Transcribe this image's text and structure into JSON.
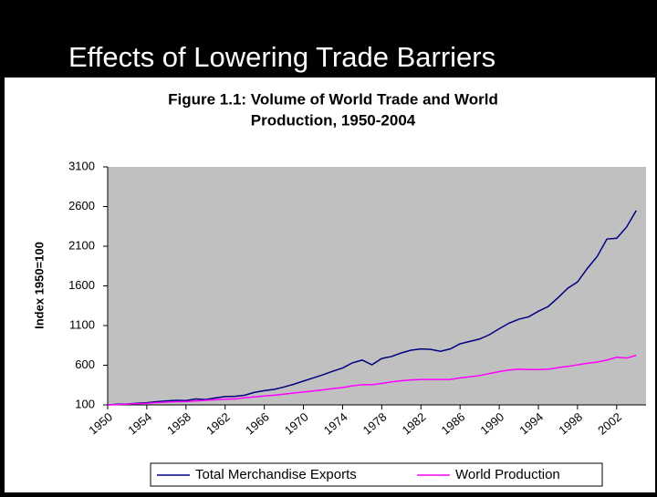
{
  "slide_title": "Effects of Lowering Trade Barriers",
  "chart_data": {
    "type": "line",
    "title": "Figure 1.1: Volume of World Trade and World Production, 1950-2004",
    "y_label": "Index 1950=100",
    "x": [
      1950,
      1951,
      1952,
      1953,
      1954,
      1955,
      1956,
      1957,
      1958,
      1959,
      1960,
      1961,
      1962,
      1963,
      1964,
      1965,
      1966,
      1967,
      1968,
      1969,
      1970,
      1971,
      1972,
      1973,
      1974,
      1975,
      1976,
      1977,
      1978,
      1979,
      1980,
      1981,
      1982,
      1983,
      1984,
      1985,
      1986,
      1987,
      1988,
      1989,
      1990,
      1991,
      1992,
      1993,
      1994,
      1995,
      1996,
      1997,
      1998,
      1999,
      2000,
      2001,
      2002,
      2003,
      2004
    ],
    "xlim": [
      1950,
      2005
    ],
    "xticks": [
      1950,
      1954,
      1958,
      1962,
      1966,
      1970,
      1974,
      1978,
      1982,
      1986,
      1990,
      1994,
      1998,
      2002
    ],
    "ylim": [
      100,
      3100
    ],
    "yticks": [
      100,
      600,
      1100,
      1600,
      2100,
      2600,
      3100
    ],
    "plot_background": "#c0c0c0",
    "series": [
      {
        "name": "Total Merchandise Exports",
        "color": "#000080",
        "values": [
          100,
          108,
          112,
          120,
          128,
          140,
          150,
          158,
          155,
          175,
          168,
          188,
          205,
          208,
          222,
          258,
          280,
          295,
          325,
          360,
          400,
          440,
          480,
          525,
          565,
          630,
          665,
          605,
          685,
          710,
          755,
          790,
          805,
          800,
          775,
          805,
          870,
          900,
          930,
          985,
          1060,
          1130,
          1180,
          1210,
          1280,
          1340,
          1450,
          1570,
          1650,
          1820,
          1970,
          2190,
          2200,
          2340,
          2550
        ]
      },
      {
        "name": "World Production",
        "color": "#ff00ff",
        "values": [
          100,
          105,
          110,
          115,
          120,
          128,
          135,
          140,
          142,
          150,
          158,
          165,
          172,
          175,
          190,
          200,
          212,
          222,
          235,
          250,
          262,
          275,
          290,
          305,
          318,
          340,
          355,
          355,
          370,
          390,
          405,
          415,
          420,
          420,
          420,
          420,
          440,
          455,
          470,
          495,
          520,
          540,
          550,
          545,
          545,
          550,
          570,
          585,
          605,
          625,
          640,
          665,
          700,
          690,
          725
        ]
      }
    ]
  }
}
